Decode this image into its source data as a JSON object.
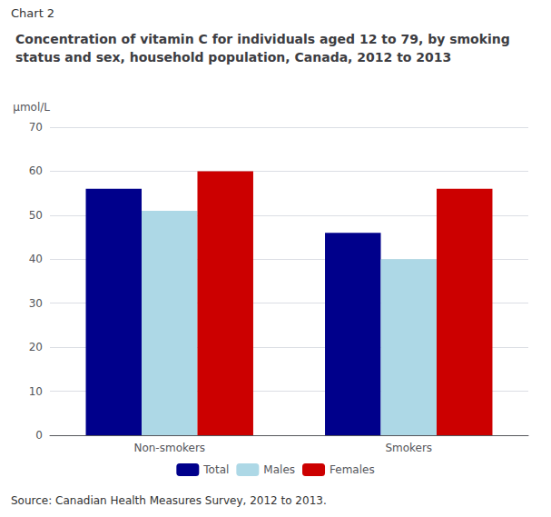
{
  "chart_data": {
    "type": "bar",
    "title": "Concentration of vitamin C for individuals aged 12 to 79, by smoking status and sex, household population, Canada, 2012 to 2013",
    "ylabel": "μmol/L",
    "annotations": [
      "Chart 2",
      "Source: Canadian Health Measures Survey, 2012 to 2013."
    ],
    "categories": [
      "Non-smokers",
      "Smokers"
    ],
    "series": [
      {
        "name": "Total",
        "color": "#00008B",
        "values": [
          56,
          46
        ]
      },
      {
        "name": "Males",
        "color": "#ADD8E6",
        "values": [
          51,
          40
        ]
      },
      {
        "name": "Females",
        "color": "#CC0000",
        "values": [
          60,
          56
        ]
      }
    ],
    "ylim": [
      0,
      70
    ],
    "yticks": [
      0,
      10,
      20,
      30,
      40,
      50,
      60,
      70
    ],
    "grid": true,
    "legend": "bottom"
  }
}
